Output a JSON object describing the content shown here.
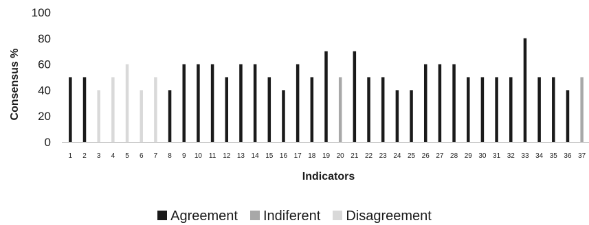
{
  "chart_data": {
    "type": "bar",
    "title": "",
    "xlabel": "Indicators",
    "ylabel": "Consensus %",
    "ylim": [
      0,
      100
    ],
    "yticks": [
      0,
      20,
      40,
      60,
      80,
      100
    ],
    "grid": false,
    "legend_position": "bottom",
    "categories": [
      "1",
      "2",
      "3",
      "4",
      "5",
      "6",
      "7",
      "8",
      "9",
      "10",
      "11",
      "12",
      "13",
      "14",
      "15",
      "16",
      "17",
      "18",
      "19",
      "20",
      "21",
      "22",
      "23",
      "24",
      "25",
      "26",
      "27",
      "28",
      "29",
      "30",
      "31",
      "32",
      "33",
      "34",
      "35",
      "36",
      "37"
    ],
    "series": [
      {
        "name": "Agreement",
        "color": "#1a1a1a",
        "values": [
          50,
          50,
          null,
          null,
          null,
          null,
          null,
          40,
          60,
          60,
          60,
          50,
          60,
          60,
          50,
          40,
          60,
          50,
          70,
          null,
          70,
          50,
          50,
          40,
          40,
          60,
          60,
          60,
          50,
          50,
          50,
          50,
          80,
          50,
          50,
          40,
          null
        ]
      },
      {
        "name": "Indiferent",
        "color": "#a8a8a8",
        "values": [
          null,
          null,
          null,
          null,
          null,
          null,
          null,
          null,
          null,
          null,
          null,
          null,
          null,
          null,
          null,
          null,
          null,
          null,
          null,
          50,
          null,
          null,
          null,
          null,
          null,
          null,
          null,
          null,
          null,
          null,
          null,
          null,
          null,
          null,
          null,
          null,
          50
        ]
      },
      {
        "name": "Disagreement",
        "color": "#d9d9d9",
        "values": [
          null,
          null,
          40,
          50,
          60,
          40,
          50,
          null,
          null,
          null,
          null,
          null,
          null,
          null,
          null,
          null,
          null,
          null,
          null,
          null,
          null,
          null,
          null,
          null,
          null,
          null,
          null,
          null,
          null,
          null,
          null,
          null,
          null,
          null,
          null,
          null,
          null
        ]
      }
    ]
  }
}
